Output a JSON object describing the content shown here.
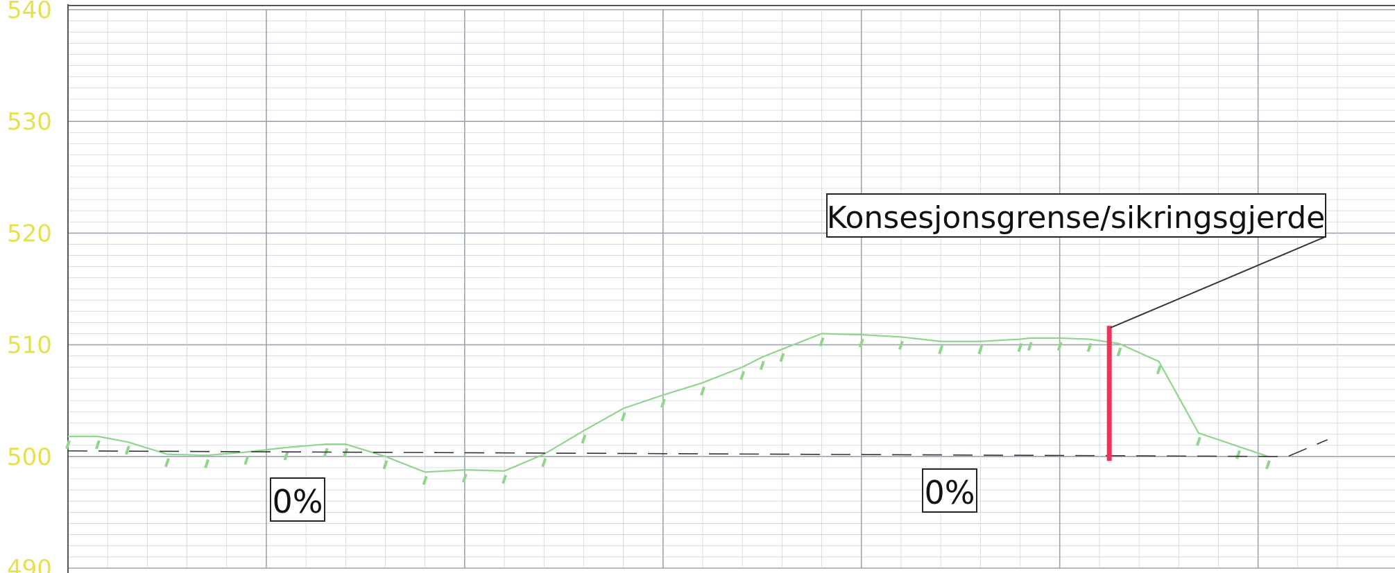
{
  "chart_data": {
    "type": "line",
    "title": "",
    "xlabel": "",
    "ylabel": "",
    "ylim": [
      490,
      540
    ],
    "yticks": [
      490,
      500,
      510,
      520,
      530,
      540
    ],
    "grid": true,
    "colors": {
      "terrain": "#8fd68a",
      "design_line": "#333333",
      "marker": "#e8345a",
      "ytick_text": "#e6e04a",
      "grid_major": "#9aa3b0",
      "grid_minor": "#c9ced6"
    },
    "series": [
      {
        "name": "",
        "style": "solid",
        "x": [
          0,
          3,
          6,
          10,
          14,
          18,
          22,
          26,
          28,
          32,
          36,
          40,
          44,
          48,
          52,
          56,
          60,
          64,
          68,
          70,
          72,
          76,
          80,
          84,
          88,
          92,
          96,
          97,
          100,
          103,
          106,
          110,
          114,
          118,
          121,
          124,
          127,
          130,
          133
        ],
        "y": [
          501.8,
          501.8,
          501.3,
          500.2,
          500.1,
          500.4,
          500.8,
          501.1,
          501.1,
          500.0,
          498.6,
          498.8,
          498.7,
          500.2,
          502.3,
          504.3,
          505.5,
          506.6,
          508.0,
          508.9,
          509.6,
          511.0,
          510.9,
          510.7,
          510.3,
          510.3,
          510.5,
          510.6,
          510.6,
          510.5,
          510.1,
          508.5,
          502.1,
          500.9,
          500.0,
          500.0,
          500.8,
          501.5,
          502.0
        ],
        "y_visible_until_x": 121
      },
      {
        "name": "",
        "style": "dashed",
        "x": [
          0,
          121,
          123,
          127
        ],
        "y": [
          500.5,
          500.0,
          500.0,
          501.5
        ]
      }
    ],
    "marker": {
      "x": 105,
      "y_from": 499.6,
      "y_to": 511.7
    },
    "annotations": {
      "grade_left": "0%",
      "grade_right": "0%",
      "callout": "Konsesjonsgrense/sikringsgjerde"
    }
  }
}
